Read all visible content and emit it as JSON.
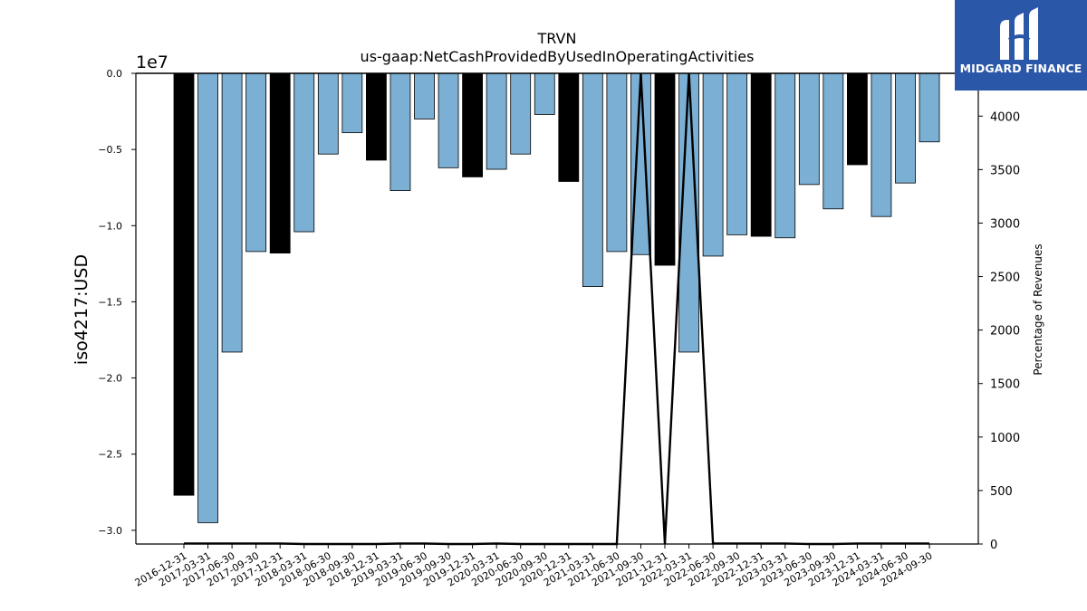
{
  "logo": {
    "text": "MIDGARD FINANCE"
  },
  "chart_data": {
    "type": "bar",
    "title": "TRVN",
    "subtitle": "us-gaap:NetCashProvidedByUsedInOperatingActivities",
    "ylabel": "iso4217:USD",
    "y2label": "Percentage of Revenues",
    "offset_label": "1e7",
    "ylim": [
      -3.09,
      0
    ],
    "y2lim": [
      0,
      4400
    ],
    "yticks": [
      0.0,
      -0.5,
      -1.0,
      -1.5,
      -2.0,
      -2.5,
      -3.0
    ],
    "ytick_labels": [
      "0.0",
      "−0.5",
      "−1.0",
      "−1.5",
      "−2.0",
      "−2.5",
      "−3.0"
    ],
    "y2ticks": [
      0,
      500,
      1000,
      1500,
      2000,
      2500,
      3000,
      3500,
      4000
    ],
    "y2tick_labels": [
      "0",
      "500",
      "1000",
      "1500",
      "2000",
      "2500",
      "3000",
      "3500",
      "4000"
    ],
    "categories": [
      "2016-12-31",
      "2017-03-31",
      "2017-06-30",
      "2017-09-30",
      "2017-12-31",
      "2018-03-31",
      "2018-06-30",
      "2018-09-30",
      "2018-12-31",
      "2019-03-31",
      "2019-06-30",
      "2019-09-30",
      "2019-12-31",
      "2020-03-31",
      "2020-06-30",
      "2020-09-30",
      "2020-12-31",
      "2021-03-31",
      "2021-06-30",
      "2021-09-30",
      "2021-12-31",
      "2022-03-31",
      "2022-06-30",
      "2022-09-30",
      "2022-12-31",
      "2023-03-31",
      "2023-06-30",
      "2023-09-30",
      "2023-12-31",
      "2024-03-31",
      "2024-06-30",
      "2024-09-30"
    ],
    "values": [
      -2.77,
      -2.95,
      -1.83,
      -1.17,
      -1.18,
      -1.04,
      -0.53,
      -0.39,
      -0.57,
      -0.77,
      -0.3,
      -0.62,
      -0.68,
      -0.63,
      -0.53,
      -0.27,
      -0.71,
      -1.4,
      -1.17,
      -1.19,
      -1.26,
      -1.83,
      -1.2,
      -1.06,
      -1.07,
      -1.08,
      -0.73,
      -0.89,
      -0.6,
      -0.94,
      -0.72,
      -0.45
    ],
    "annual": [
      true,
      false,
      false,
      false,
      true,
      false,
      false,
      false,
      true,
      false,
      false,
      false,
      true,
      false,
      false,
      false,
      true,
      false,
      false,
      false,
      true,
      false,
      false,
      false,
      true,
      false,
      false,
      false,
      true,
      false,
      false,
      false
    ],
    "pct_of_revenue": [
      5,
      5,
      5,
      5,
      5,
      0,
      0,
      0,
      0,
      5,
      5,
      0,
      0,
      5,
      0,
      0,
      0,
      0,
      0,
      4400,
      0,
      4400,
      5,
      5,
      5,
      5,
      0,
      0,
      5,
      5,
      5,
      5
    ],
    "colors": {
      "annual": "#000000",
      "quarter": "#7bafd4",
      "edge": "#000000",
      "line": "#000000"
    }
  }
}
